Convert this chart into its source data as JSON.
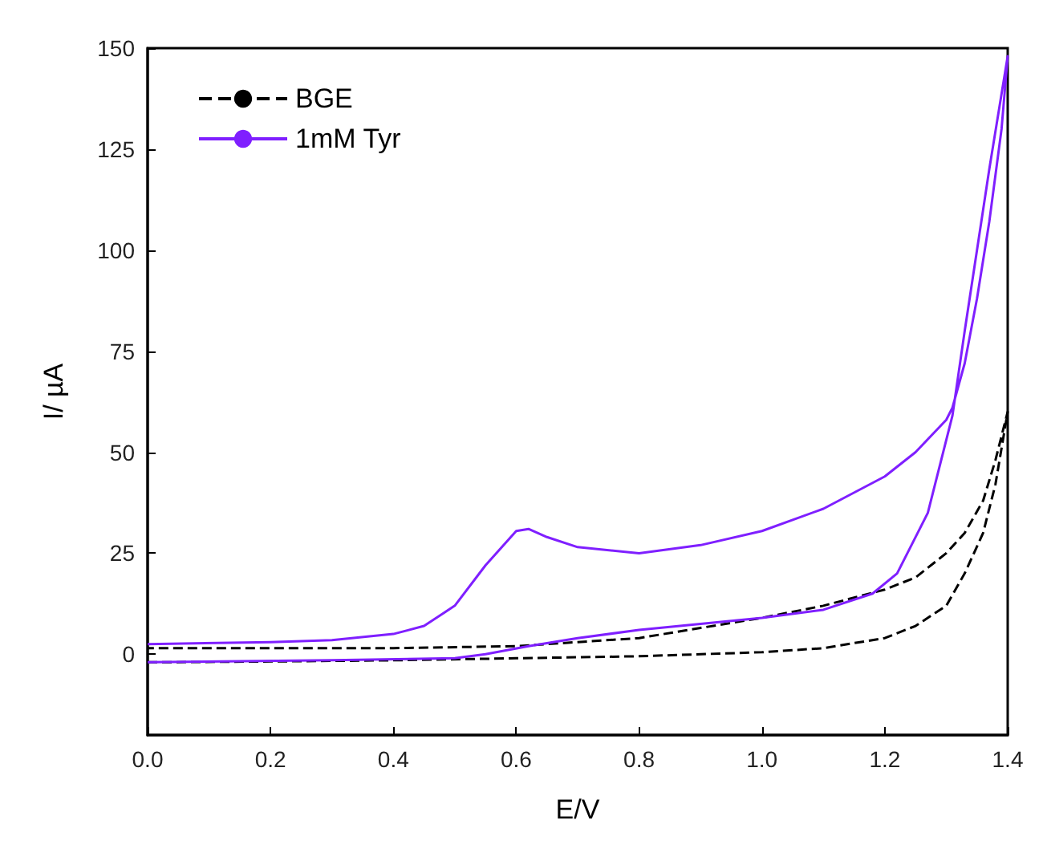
{
  "chart_data": {
    "type": "line",
    "xlabel": "E/V",
    "ylabel": "I/ µA",
    "xlim": [
      0,
      1.4
    ],
    "xticks": [
      {
        "value": 0,
        "label": "0.0"
      },
      0.2,
      0.4,
      0.6,
      0.8,
      {
        "value": 1,
        "label": "1.0"
      },
      1.2,
      1.4
    ],
    "ylim": [
      -20,
      150
    ],
    "yticks": [
      0,
      25,
      50,
      75,
      100,
      125,
      150
    ],
    "grid": false,
    "legend": "top left",
    "marker": "none",
    "series": [
      {
        "name": "BGE",
        "color": "#000000",
        "line_style": "dashed",
        "x": [
          0,
          0.2,
          0.4,
          0.6,
          0.8,
          1.0,
          1.1,
          1.2,
          1.25,
          1.3,
          1.33,
          1.36,
          1.38,
          1.4,
          1.38,
          1.36,
          1.33,
          1.3,
          1.25,
          1.2,
          1.1,
          1.0,
          0.9,
          0.8,
          0.7,
          0.6,
          0.4,
          0.2,
          0
        ],
        "values": [
          -2,
          -1.8,
          -1.5,
          -1,
          -0.5,
          0.5,
          1.5,
          4,
          7,
          12,
          20,
          30,
          42,
          60,
          48,
          38,
          30,
          25,
          19,
          16,
          12,
          9,
          6.5,
          4,
          3,
          2,
          1.5,
          1.5,
          1.5
        ]
      },
      {
        "name": "1mM Tyr",
        "color": "#7f1fff",
        "line_style": "solid",
        "x": [
          0,
          0.3,
          0.5,
          0.55,
          0.62,
          0.7,
          0.8,
          0.9,
          1.0,
          1.1,
          1.18,
          1.22,
          1.27,
          1.31,
          1.33,
          1.35,
          1.37,
          1.4,
          1.39,
          1.37,
          1.35,
          1.33,
          1.31,
          1.3,
          1.25,
          1.2,
          1.1,
          1.0,
          0.9,
          0.8,
          0.7,
          0.65,
          0.62,
          0.6,
          0.55,
          0.5,
          0.45,
          0.4,
          0.3,
          0.2,
          0
        ],
        "values": [
          -2,
          -1.5,
          -1,
          0,
          2,
          4,
          6,
          7.5,
          9,
          11,
          15,
          20,
          35,
          59,
          80,
          100,
          120,
          148,
          130,
          107,
          88,
          72,
          61,
          58,
          50,
          44,
          36,
          30.5,
          27,
          25,
          26.5,
          29,
          31,
          30.5,
          22,
          12,
          7,
          5,
          3.5,
          3,
          2.5
        ]
      }
    ]
  }
}
